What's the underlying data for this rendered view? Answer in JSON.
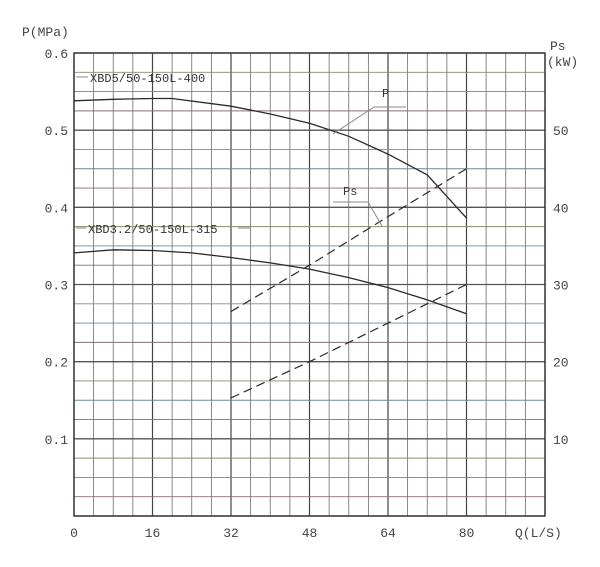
{
  "chart_data": {
    "type": "line",
    "xlabel": "Q(L/S)",
    "ylabel": "P(MPa)",
    "y2label_top": "Ps",
    "y2label_unit": "(kW)",
    "xlim": [
      0,
      96
    ],
    "ylim": [
      0,
      0.6
    ],
    "y2lim": [
      0,
      60
    ],
    "x_ticks": [
      "0",
      "16",
      "32",
      "48",
      "64",
      "80"
    ],
    "x_tick_values": [
      0,
      16,
      32,
      48,
      64,
      80
    ],
    "y_ticks": [
      "0.1",
      "0.2",
      "0.3",
      "0.4",
      "0.5",
      "0.6"
    ],
    "y_tick_values": [
      0.1,
      0.2,
      0.3,
      0.4,
      0.5,
      0.6
    ],
    "y2_ticks": [
      "10",
      "20",
      "30",
      "40",
      "50"
    ],
    "y2_tick_values": [
      10,
      20,
      30,
      40,
      50
    ],
    "grid": true,
    "x_grid_step": 4,
    "y_grid_step": 0.025,
    "curve_labels": {
      "P": "P",
      "Ps": "Ps"
    },
    "models": [
      {
        "name": "XBD5/50-150L-400",
        "pressure": {
          "x": [
            0,
            8,
            16,
            20,
            32,
            40,
            48,
            56,
            64,
            72,
            80
          ],
          "y": [
            0.538,
            0.54,
            0.541,
            0.541,
            0.531,
            0.521,
            0.509,
            0.492,
            0.469,
            0.442,
            0.386
          ]
        },
        "power_kW": {
          "x": [
            32,
            48,
            64,
            80
          ],
          "y": [
            26.5,
            32.5,
            38.8,
            45.0
          ]
        }
      },
      {
        "name": "XBD3.2/50-150L-315",
        "pressure": {
          "x": [
            0,
            8,
            16,
            24,
            32,
            40,
            48,
            56,
            64,
            72,
            80
          ],
          "y": [
            0.341,
            0.345,
            0.344,
            0.341,
            0.335,
            0.328,
            0.32,
            0.309,
            0.296,
            0.28,
            0.262
          ]
        },
        "power_kW": {
          "x": [
            32,
            48,
            64,
            80
          ],
          "y": [
            15.3,
            20.0,
            25.0,
            30.0
          ]
        }
      }
    ],
    "colors": {
      "grid": "#6a6a6a",
      "curve": "#2a2a2a",
      "text": "#444444"
    }
  }
}
